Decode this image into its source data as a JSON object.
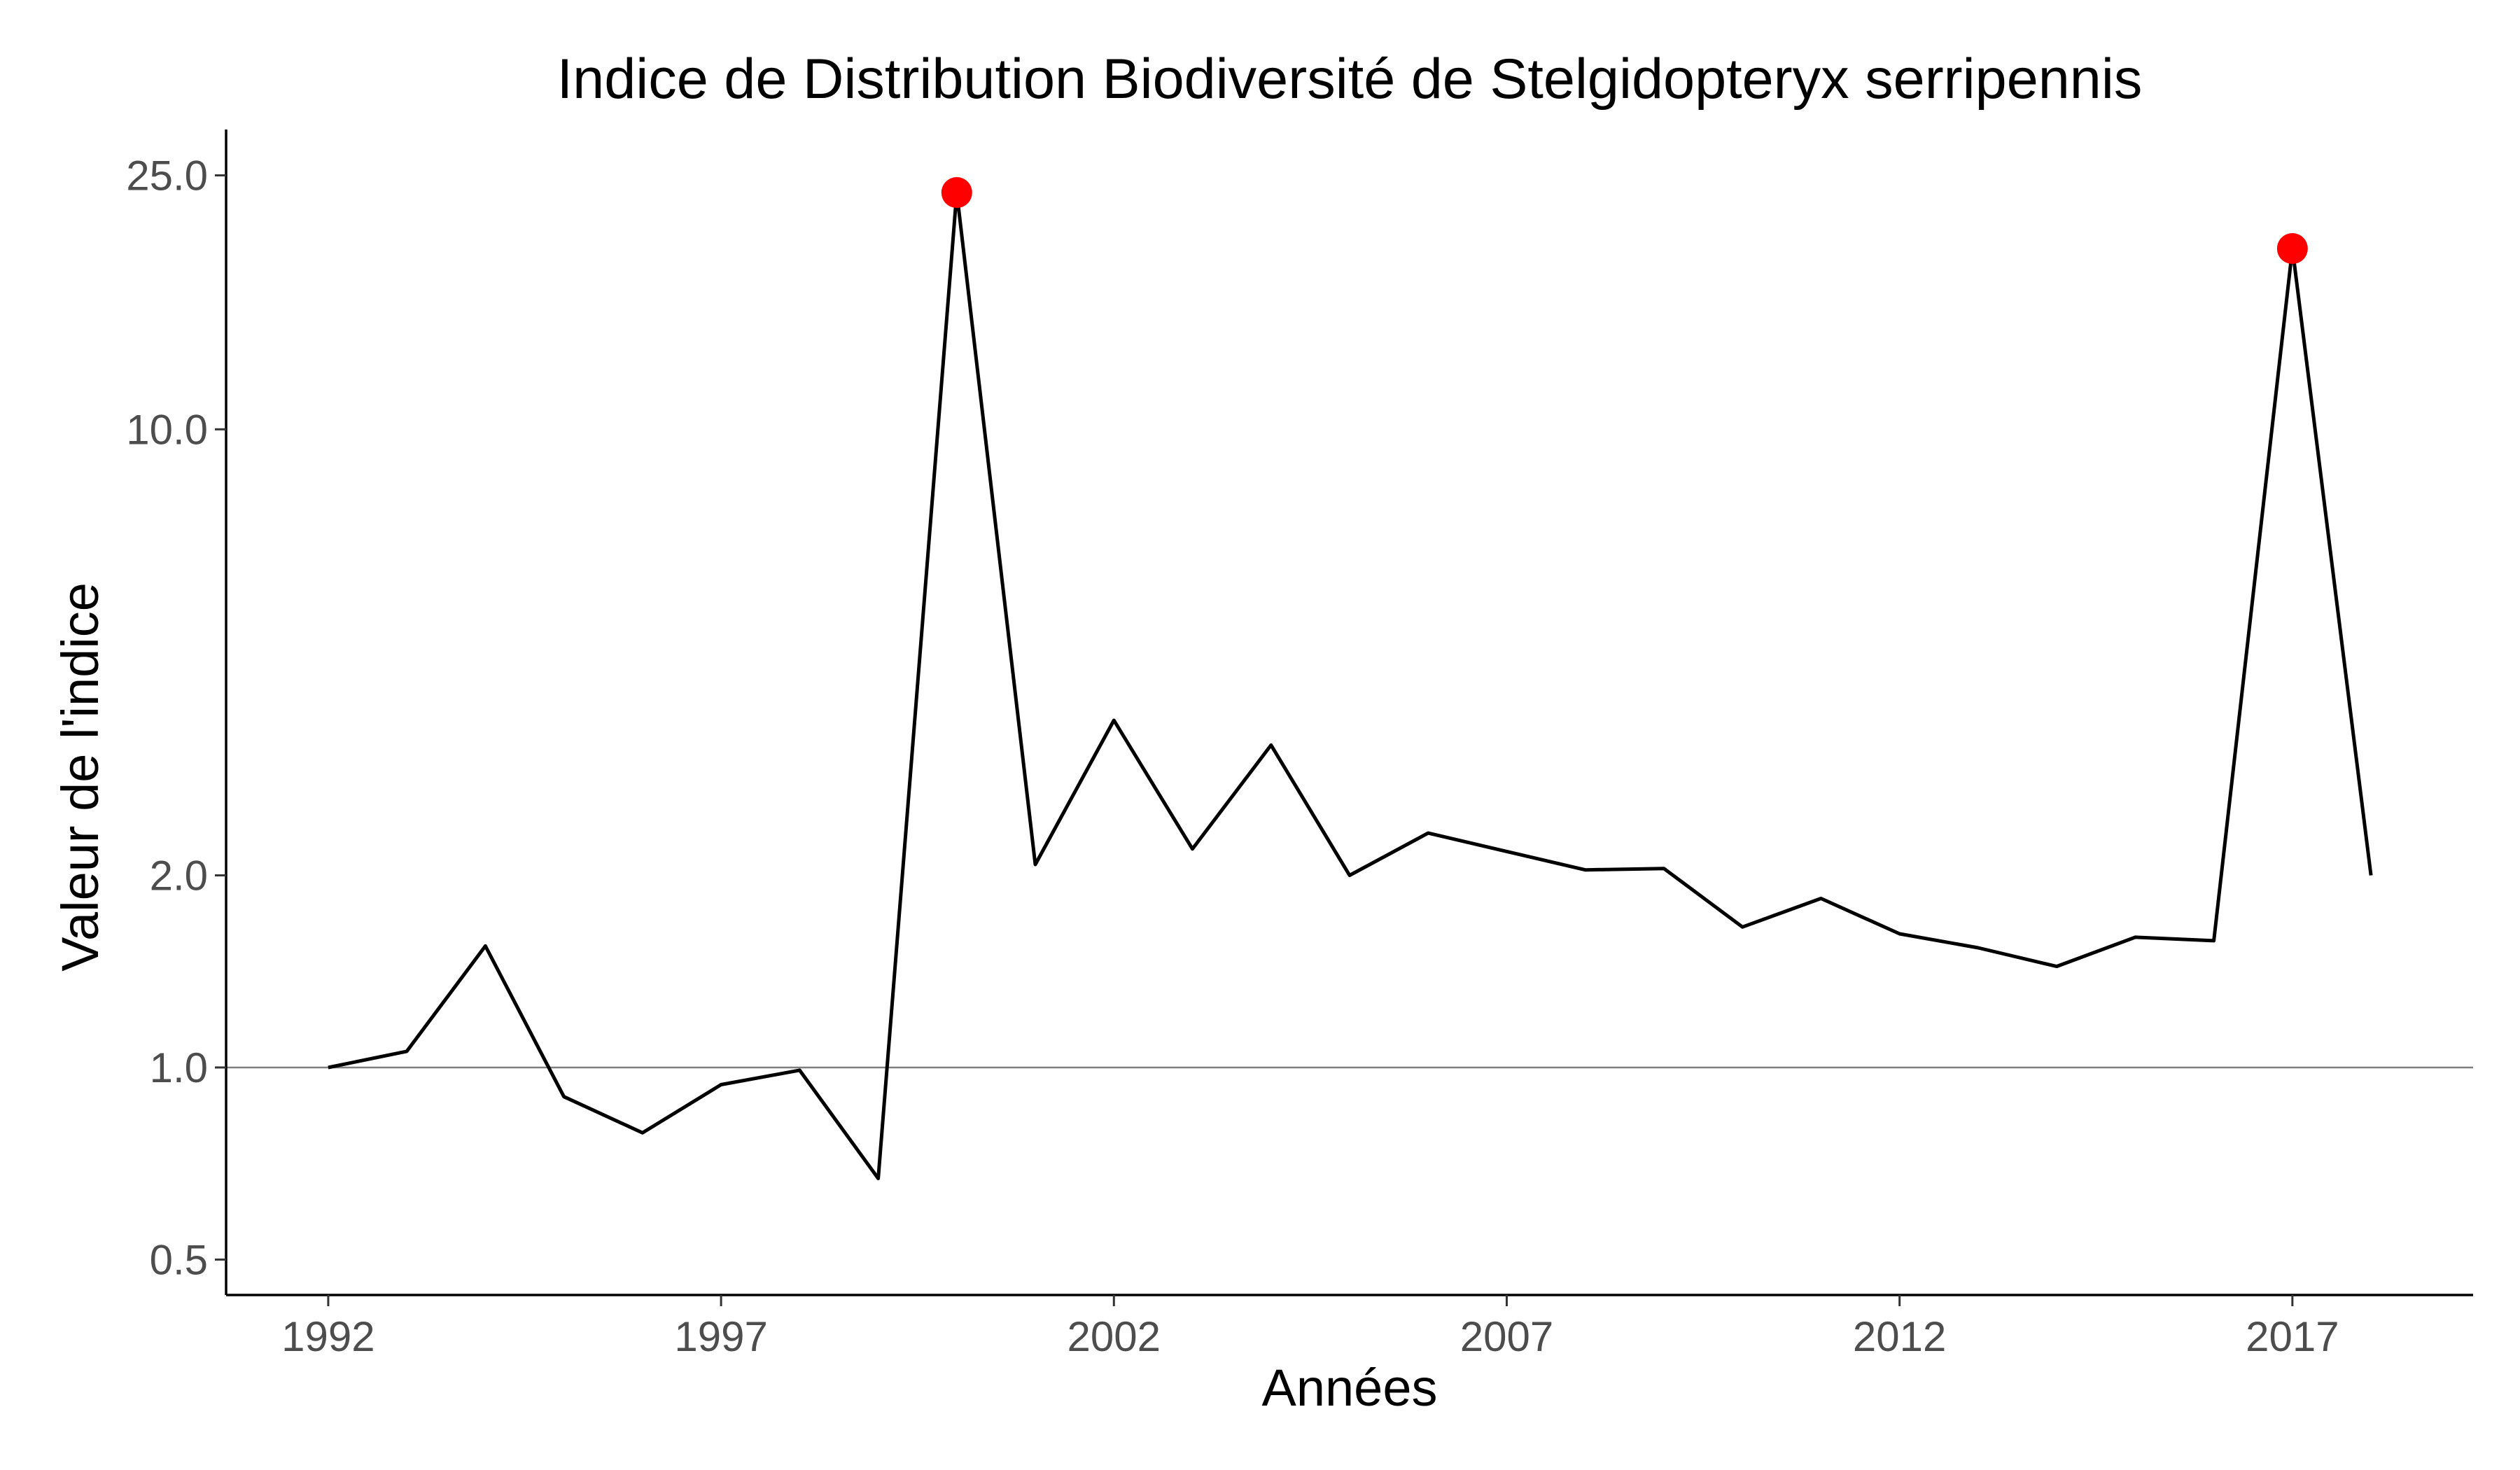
{
  "chart_data": {
    "type": "line",
    "title": "Indice de Distribution Biodiversité de Stelgidopteryx serripennis",
    "xlabel": "Années",
    "ylabel": "Valeur de l'indice",
    "x_scale": "linear",
    "y_scale": "log",
    "xlim": [
      1990.7,
      2019.3
    ],
    "ylim": [
      0.44,
      29.5
    ],
    "x_ticks": [
      1992,
      1997,
      2002,
      2007,
      2012,
      2017
    ],
    "x_tick_labels": [
      "1992",
      "1997",
      "2002",
      "2007",
      "2012",
      "2017"
    ],
    "y_ticks": [
      0.5,
      1.0,
      2.0,
      10.0,
      25.0
    ],
    "y_tick_labels": [
      "0.5",
      "1.0",
      "2.0",
      "10.0",
      "25.0"
    ],
    "reference_line": 1.0,
    "grid": false,
    "series": [
      {
        "x": [
          1992,
          1993,
          1994,
          1995,
          1996,
          1997,
          1998,
          1999,
          2000,
          2001,
          2002,
          2003,
          2004,
          2005,
          2006,
          2007,
          2008,
          2009,
          2010,
          2011,
          2012,
          2013,
          2014,
          2015,
          2016,
          2017,
          2018
        ],
        "values": [
          1.0,
          1.06,
          1.55,
          0.9,
          0.79,
          0.94,
          0.99,
          0.67,
          23.5,
          2.08,
          3.5,
          2.2,
          3.2,
          2.0,
          2.33,
          2.18,
          2.04,
          2.05,
          1.66,
          1.84,
          1.62,
          1.54,
          1.44,
          1.6,
          1.58,
          19.2,
          2.0
        ]
      }
    ],
    "highlighted_points": [
      {
        "x": 2000,
        "value": 23.5
      },
      {
        "x": 2017,
        "value": 19.2
      }
    ],
    "colors": {
      "line": "#000000",
      "highlight": "#ff0000",
      "reference_line": "#7f7f7f",
      "axis": "#000000",
      "tick_label": "#4d4d4d"
    }
  }
}
